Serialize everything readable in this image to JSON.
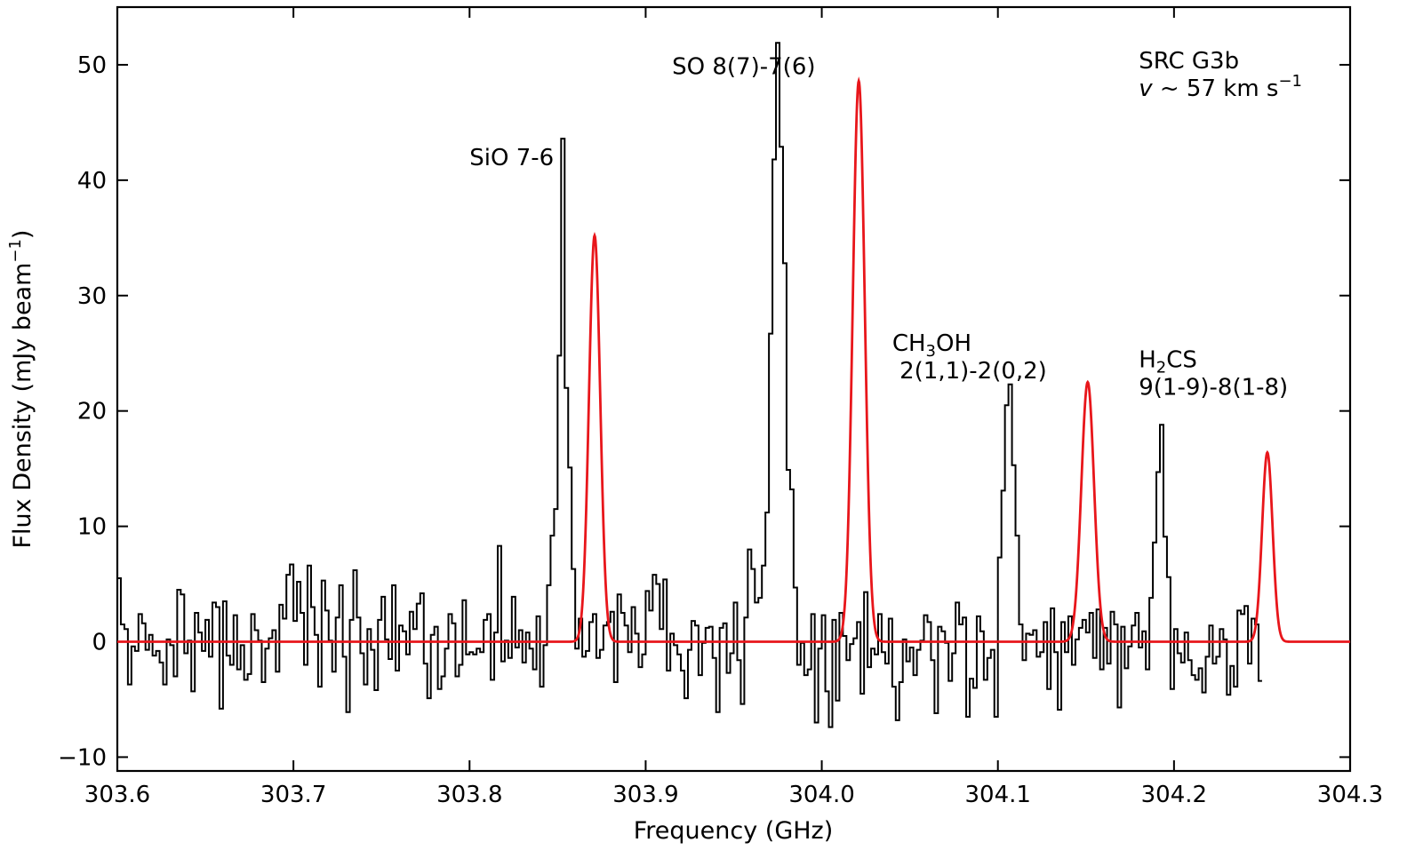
{
  "chart_data": {
    "type": "line",
    "title": "",
    "xlabel": "Frequency (GHz)",
    "ylabel": {
      "main": "Flux Density (mJy beam",
      "sup": "−1",
      "close": ")"
    },
    "xlim": [
      303.6,
      304.3
    ],
    "ylim": [
      -11.2,
      55
    ],
    "xticks": [
      303.6,
      303.7,
      303.8,
      303.9,
      304.0,
      304.1,
      304.2,
      304.3
    ],
    "xtick_labels": [
      "303.6",
      "303.7",
      "303.8",
      "303.9",
      "304.0",
      "304.1",
      "304.2",
      "304.3"
    ],
    "yticks": [
      -10,
      0,
      10,
      20,
      30,
      40,
      50
    ],
    "ytick_labels": [
      "−10",
      "0",
      "10",
      "20",
      "30",
      "40",
      "50"
    ],
    "grid": false,
    "colors": {
      "observed": "#000000",
      "fit": "#e8161b"
    },
    "series": [
      {
        "style": "steps",
        "x_start": 303.6,
        "x_step": 0.002,
        "values": [
          5.5,
          1.5,
          1.1,
          -3.7,
          -0.4,
          -0.8,
          2.4,
          1.6,
          -0.7,
          0.6,
          -1.2,
          -0.8,
          -1.8,
          -3.7,
          0.2,
          -0.3,
          -3.0,
          4.5,
          4.1,
          -1.0,
          0.1,
          -4.3,
          2.5,
          0.8,
          -0.8,
          1.9,
          -1.3,
          3.4,
          3.0,
          -5.8,
          3.5,
          -1.2,
          -2.0,
          2.3,
          -2.4,
          -0.3,
          -3.3,
          -2.8,
          2.4,
          1.0,
          0.1,
          -3.5,
          -0.6,
          0.3,
          1.0,
          -2.6,
          3.2,
          2.0,
          5.8,
          6.7,
          1.8,
          5.2,
          2.5,
          -2.0,
          6.6,
          3.0,
          0.6,
          -3.9,
          5.3,
          2.7,
          0.1,
          -2.6,
          2.1,
          4.9,
          -1.3,
          -6.1,
          1.9,
          6.2,
          2.1,
          -1.0,
          -3.7,
          1.1,
          -0.7,
          -4.2,
          1.9,
          3.9,
          0.2,
          -1.5,
          4.9,
          -2.5,
          1.4,
          0.9,
          -1.1,
          2.6,
          1.1,
          3.3,
          4.2,
          -1.9,
          -4.9,
          0.6,
          1.3,
          -4.1,
          -3.0,
          -0.6,
          2.4,
          1.6,
          -3.0,
          -2.0,
          3.6,
          -1.1,
          -0.9,
          -1.1,
          -0.6,
          -0.9,
          1.9,
          2.4,
          -3.3,
          0.8,
          8.3,
          -1.7,
          0.1,
          -1.4,
          3.9,
          -0.5,
          1.0,
          -1.8,
          0.8,
          -0.6,
          -2.4,
          2.2,
          -3.9,
          -0.3,
          4.9,
          9.2,
          11.5,
          24.8,
          43.6,
          22.0,
          15.1,
          6.3,
          -0.6,
          2.0,
          -1.3,
          -0.8,
          1.7,
          2.4,
          -1.4,
          -0.7,
          1.4,
          1.7,
          2.6,
          -3.5,
          4.1,
          2.5,
          1.4,
          -0.9,
          3.0,
          0.7,
          -2.2,
          -1.1,
          4.4,
          2.7,
          5.8,
          5.0,
          1.1,
          5.4,
          -2.5,
          0.7,
          -0.3,
          -1.1,
          -2.5,
          -4.9,
          -0.7,
          1.8,
          1.4,
          -2.9,
          -0.1,
          1.2,
          1.3,
          -1.4,
          -6.1,
          1.2,
          1.6,
          -2.7,
          -1.0,
          3.4,
          -1.6,
          -5.4,
          2.1,
          8.0,
          6.3,
          3.4,
          3.8,
          6.6,
          11.2,
          26.7,
          41.8,
          51.9,
          42.9,
          32.8,
          14.9,
          13.2,
          4.7,
          -2.0,
          -0.1,
          -2.9,
          -2.4,
          2.4,
          -7.0,
          -0.6,
          2.3,
          -4.3,
          -7.4,
          1.9,
          -5.1,
          2.5,
          0.5,
          -1.6,
          -0.2,
          0.3,
          1.7,
          -4.5,
          4.3,
          -2.2,
          -0.6,
          -1.1,
          2.4,
          -0.9,
          -1.9,
          2.0,
          -3.9,
          -6.8,
          -3.5,
          0.2,
          -1.7,
          -0.5,
          -2.9,
          -0.7,
          0.1,
          2.3,
          1.7,
          -1.6,
          -6.2,
          1.3,
          0.9,
          -0.1,
          -3.4,
          -1.0,
          3.4,
          1.5,
          2.1,
          -6.5,
          -3.2,
          -4.0,
          2.2,
          0.9,
          -3.3,
          -1.4,
          -0.7,
          -6.5,
          7.3,
          13.1,
          20.5,
          22.3,
          15.3,
          9.2,
          1.5,
          -1.6,
          0.7,
          0.6,
          1.0,
          -1.3,
          -0.9,
          1.7,
          -4.1,
          2.9,
          -0.9,
          -5.9,
          1.7,
          -0.9,
          2.2,
          -2.0,
          0.2,
          1.2,
          1.9,
          0.8,
          2.5,
          -1.4,
          2.8,
          -2.4,
          1.2,
          -1.9,
          2.6,
          1.5,
          -5.7,
          1.3,
          -2.3,
          -0.4,
          1.4,
          2.5,
          -0.5,
          0.9,
          -2.4,
          3.8,
          8.6,
          14.7,
          18.8,
          9.1,
          5.6,
          -4.1,
          1.1,
          -1.0,
          -1.8,
          0.8,
          -1.6,
          -2.9,
          -3.3,
          -2.3,
          -4.4,
          -1.3,
          1.4,
          -1.9,
          -1.3,
          1.1,
          0.2,
          -4.6,
          -2.1,
          -3.9,
          2.7,
          2.4,
          3.1,
          -1.9,
          2.0,
          1.5,
          -3.4
        ]
      },
      {
        "style": "gaussian-fit",
        "peaks": [
          {
            "center": 303.871,
            "amplitude": 35.2,
            "fwhm": 0.0075
          },
          {
            "center": 304.021,
            "amplitude": 48.6,
            "fwhm": 0.008
          },
          {
            "center": 304.151,
            "amplitude": 22.5,
            "fwhm": 0.0085
          },
          {
            "center": 304.253,
            "amplitude": 16.4,
            "fwhm": 0.007
          }
        ]
      }
    ],
    "annotations": [
      {
        "lines": [
          [
            "SiO 7-6"
          ]
        ],
        "x": 303.8,
        "y": 41.3
      },
      {
        "lines": [
          [
            "SO 8(7)-7(6)"
          ]
        ],
        "x": 303.915,
        "y": 49.2
      },
      {
        "lines": [
          [
            "CH",
            {
              "sub": "3"
            },
            "OH"
          ],
          [
            " 2(1,1)-2(0,2)"
          ]
        ],
        "x": 304.04,
        "y": 25.2
      },
      {
        "lines": [
          [
            "H",
            {
              "sub": "2"
            },
            "CS"
          ],
          [
            "9(1-9)-8(1-8)"
          ]
        ],
        "x": 304.18,
        "y": 23.8
      },
      {
        "lines": [
          [
            "SRC G3b"
          ],
          [
            {
              "it": "v"
            },
            " ~ 57 km s",
            {
              "sup": "−1"
            }
          ]
        ],
        "x": 304.18,
        "y": 49.7
      }
    ]
  }
}
